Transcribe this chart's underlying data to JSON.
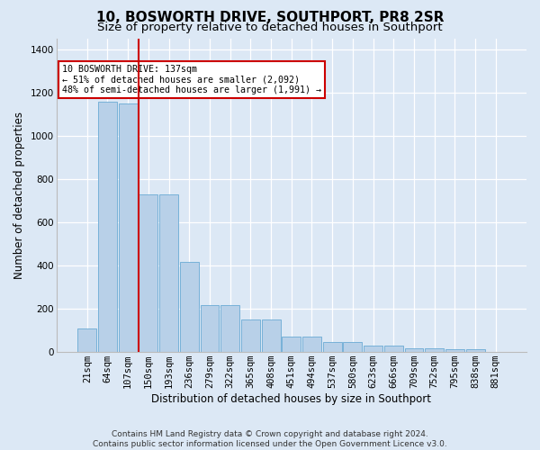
{
  "title": "10, BOSWORTH DRIVE, SOUTHPORT, PR8 2SR",
  "subtitle": "Size of property relative to detached houses in Southport",
  "xlabel": "Distribution of detached houses by size in Southport",
  "ylabel": "Number of detached properties",
  "footer_line1": "Contains HM Land Registry data © Crown copyright and database right 2024.",
  "footer_line2": "Contains public sector information licensed under the Open Government Licence v3.0.",
  "categories": [
    "21sqm",
    "64sqm",
    "107sqm",
    "150sqm",
    "193sqm",
    "236sqm",
    "279sqm",
    "322sqm",
    "365sqm",
    "408sqm",
    "451sqm",
    "494sqm",
    "537sqm",
    "580sqm",
    "623sqm",
    "666sqm",
    "709sqm",
    "752sqm",
    "795sqm",
    "838sqm",
    "881sqm"
  ],
  "values": [
    110,
    1155,
    1148,
    730,
    730,
    418,
    215,
    215,
    152,
    152,
    70,
    70,
    48,
    48,
    30,
    30,
    18,
    18,
    14,
    14,
    0
  ],
  "bar_color": "#b8d0e8",
  "bar_edge_color": "#6aaad4",
  "vline_x": 2.5,
  "vline_color": "#cc0000",
  "annotation_text": "10 BOSWORTH DRIVE: 137sqm\n← 51% of detached houses are smaller (2,092)\n48% of semi-detached houses are larger (1,991) →",
  "annotation_box_facecolor": "#ffffff",
  "annotation_box_edgecolor": "#cc0000",
  "ylim": [
    0,
    1450
  ],
  "yticks": [
    0,
    200,
    400,
    600,
    800,
    1000,
    1200,
    1400
  ],
  "bg_color": "#dce8f5",
  "plot_bg_color": "#dce8f5",
  "grid_color": "#ffffff",
  "title_fontsize": 11,
  "subtitle_fontsize": 9.5,
  "axis_label_fontsize": 8.5,
  "ylabel_fontsize": 8.5,
  "tick_fontsize": 7.5,
  "footer_fontsize": 6.5
}
